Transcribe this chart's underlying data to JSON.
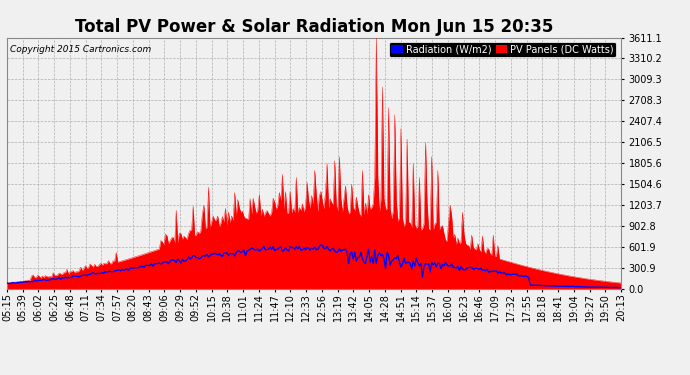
{
  "title": "Total PV Power & Solar Radiation Mon Jun 15 20:35",
  "copyright": "Copyright 2015 Cartronics.com",
  "legend_radiation": "Radiation (W/m2)",
  "legend_pv": "PV Panels (DC Watts)",
  "ytick_vals": [
    0.0,
    300.9,
    601.9,
    902.8,
    1203.7,
    1504.6,
    1805.6,
    2106.5,
    2407.4,
    2708.3,
    3009.3,
    3310.2,
    3611.1
  ],
  "ylabel_right": [
    "0.0",
    "300.9",
    "601.9",
    "902.8",
    "1203.7",
    "1504.6",
    "1805.6",
    "2106.5",
    "2407.4",
    "2708.3",
    "3009.3",
    "3310.2",
    "3611.1"
  ],
  "ymax": 3611.1,
  "background_color": "#f0f0f0",
  "grid_color": "#aaaaaa",
  "pv_color": "red",
  "radiation_color": "blue",
  "title_fontsize": 12,
  "tick_fontsize": 7,
  "xtick_labels": [
    "05:15",
    "05:39",
    "06:02",
    "06:25",
    "06:48",
    "07:11",
    "07:34",
    "07:57",
    "08:20",
    "08:43",
    "09:06",
    "09:29",
    "09:52",
    "10:15",
    "10:38",
    "11:01",
    "11:24",
    "11:47",
    "12:10",
    "12:33",
    "12:56",
    "13:19",
    "13:42",
    "14:05",
    "14:28",
    "14:51",
    "15:14",
    "15:37",
    "16:00",
    "16:23",
    "16:46",
    "17:09",
    "17:32",
    "17:55",
    "18:18",
    "18:41",
    "19:04",
    "19:27",
    "19:50",
    "20:13"
  ]
}
